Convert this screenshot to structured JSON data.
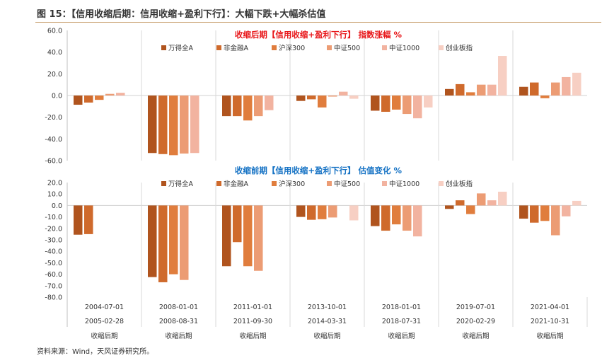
{
  "figure": {
    "title": "图 15：【信用收缩后期：信用收缩+盈利下行】：大幅下跌+大幅杀估值",
    "source": "资料来源：Wind，天风证券研究所。"
  },
  "colors": [
    "#b0541e",
    "#cf6a2c",
    "#e07d3d",
    "#ec9c74",
    "#f2b3a0",
    "#f7cfc3"
  ],
  "chart_data": [
    {
      "type": "bar",
      "title": "收缩后期【信用收缩+盈利下行】 指数涨幅 %",
      "title_color": "#e8171a",
      "ylim": [
        -60,
        60
      ],
      "yticks": [
        -60,
        -40,
        -20,
        0,
        20,
        40,
        60
      ],
      "ytick_labels": [
        "-60.0",
        "-40.0",
        "-20.0",
        "0.0",
        "20.0",
        "40.0",
        "60.0"
      ],
      "legend": [
        "万得全A",
        "非金融A",
        "沪深300",
        "中证500",
        "中证1000",
        "创业板指"
      ],
      "series": [
        {
          "name": "万得全A",
          "values": [
            -8.5,
            -53,
            -19,
            -5,
            -14,
            6,
            8
          ]
        },
        {
          "name": "非金融A",
          "values": [
            -6.5,
            -54,
            -19,
            -3.5,
            -15,
            10.5,
            12
          ]
        },
        {
          "name": "沪深300",
          "values": [
            -4,
            -55,
            -23,
            -11,
            -13,
            3,
            -2.5
          ]
        },
        {
          "name": "中证500",
          "values": [
            1.5,
            -53.5,
            -19,
            -1,
            -17,
            10,
            12
          ]
        },
        {
          "name": "中证1000",
          "values": [
            2.5,
            -53,
            -13.5,
            3.5,
            -21,
            10,
            17
          ]
        },
        {
          "name": "创业板指",
          "values": [
            null,
            null,
            null,
            -3,
            -11,
            36.5,
            21
          ]
        }
      ]
    },
    {
      "type": "bar",
      "title": "收缩前期【信用收缩+盈利下行】 估值变化 %",
      "title_color": "#1572c4",
      "ylim": [
        -80,
        20
      ],
      "yticks": [
        -80,
        -70,
        -60,
        -50,
        -40,
        -30,
        -20,
        -10,
        0,
        10,
        20
      ],
      "ytick_labels": [
        "-80.0",
        "-70.0",
        "-60.0",
        "-50.0",
        "-40.0",
        "-30.0",
        "-20.0",
        "-10.0",
        "0.0",
        "10.0",
        "20.0"
      ],
      "legend": [
        "万得全A",
        "非金融A",
        "沪深300",
        "中证500",
        "中证1000",
        "创业板指"
      ],
      "series": [
        {
          "name": "万得全A",
          "values": [
            -25.5,
            -62.5,
            -53,
            -10,
            -18,
            -3,
            -11.5
          ]
        },
        {
          "name": "非金融A",
          "values": [
            -25,
            -67,
            -32,
            -12.5,
            -22,
            4.5,
            -15
          ]
        },
        {
          "name": "沪深300",
          "values": [
            null,
            -60,
            -53,
            -12,
            -16.5,
            -7.5,
            -13.5
          ]
        },
        {
          "name": "中证500",
          "values": [
            null,
            -65,
            -57,
            -10.5,
            -22,
            10.5,
            -26
          ]
        },
        {
          "name": "中证1000",
          "values": [
            null,
            null,
            null,
            null,
            -27,
            4.5,
            -9.5
          ]
        },
        {
          "name": "创业板指",
          "values": [
            null,
            null,
            null,
            -13,
            null,
            12,
            4
          ]
        }
      ]
    }
  ],
  "periods": [
    {
      "start": "2004-07-01",
      "end": "2005-02-28",
      "label": "收缩后期"
    },
    {
      "start": "2008-01-01",
      "end": "2008-08-31",
      "label": "收缩后期"
    },
    {
      "start": "2011-01-01",
      "end": "2011-09-30",
      "label": "收缩后期"
    },
    {
      "start": "2013-10-01",
      "end": "2014-03-31",
      "label": "收缩后期"
    },
    {
      "start": "2018-01-01",
      "end": "2018-07-31",
      "label": "收缩后期"
    },
    {
      "start": "2019-07-01",
      "end": "2020-02-29",
      "label": "收缩后期"
    },
    {
      "start": "2021-04-01",
      "end": "2021-10-31",
      "label": "收缩后期"
    }
  ]
}
